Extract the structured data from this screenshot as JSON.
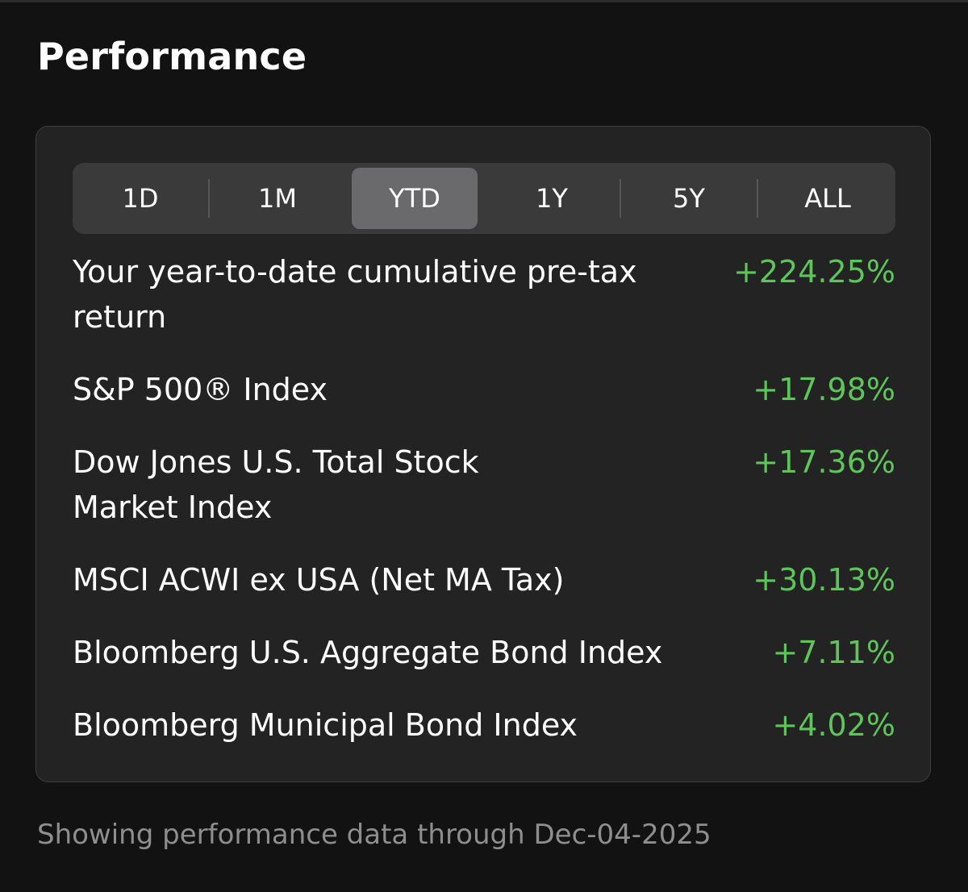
{
  "header": {
    "title": "Performance"
  },
  "periods": {
    "items": [
      {
        "label": "1D"
      },
      {
        "label": "1M"
      },
      {
        "label": "YTD"
      },
      {
        "label": "1Y"
      },
      {
        "label": "5Y"
      },
      {
        "label": "ALL"
      }
    ],
    "selected": "YTD"
  },
  "rows": [
    {
      "label": "Your year-to-date cumulative pre-tax return",
      "value": "+224.25%"
    },
    {
      "label": "S&P 500® Index",
      "value": "+17.98%"
    },
    {
      "label": "Dow Jones U.S. Total Stock Market Index",
      "value": "+17.36%"
    },
    {
      "label": "MSCI ACWI ex USA (Net MA Tax)",
      "value": "+30.13%"
    },
    {
      "label": "Bloomberg U.S. Aggregate Bond Index",
      "value": "+7.11%"
    },
    {
      "label": "Bloomberg Municipal Bond Index",
      "value": "+4.02%"
    }
  ],
  "footer": {
    "note": "Showing performance data through Dec-04-2025"
  },
  "colors": {
    "background": "#121212",
    "card": "#232323",
    "positive": "#5ec55b",
    "selected_segment": "#6a6a6c"
  }
}
